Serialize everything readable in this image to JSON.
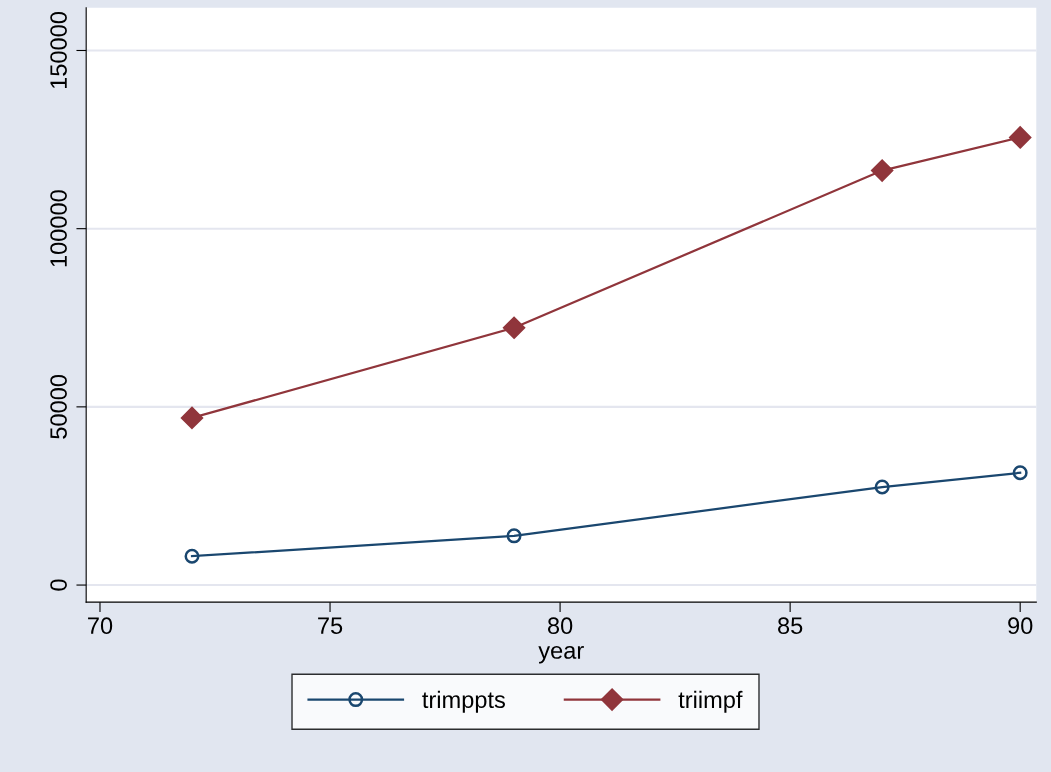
{
  "chart_data": {
    "type": "line",
    "xlabel": "year",
    "x": [
      72,
      79,
      87,
      90
    ],
    "series": [
      {
        "name": "trimppts",
        "color": "#1a476f",
        "values": [
          8100,
          13800,
          27500,
          31500
        ],
        "marker": "circle"
      },
      {
        "name": "triimpf",
        "color": "#90353b",
        "values": [
          46900,
          72200,
          116300,
          125600
        ],
        "marker": "diamond"
      }
    ],
    "xlim": [
      69.7,
      90.35
    ],
    "xticks": [
      70,
      75,
      80,
      85,
      90
    ],
    "ylim": [
      -4800,
      162000
    ],
    "yticks": [
      0,
      50000,
      100000,
      150000
    ],
    "grid": "y",
    "legend": "bottom",
    "line_style": "solid"
  }
}
